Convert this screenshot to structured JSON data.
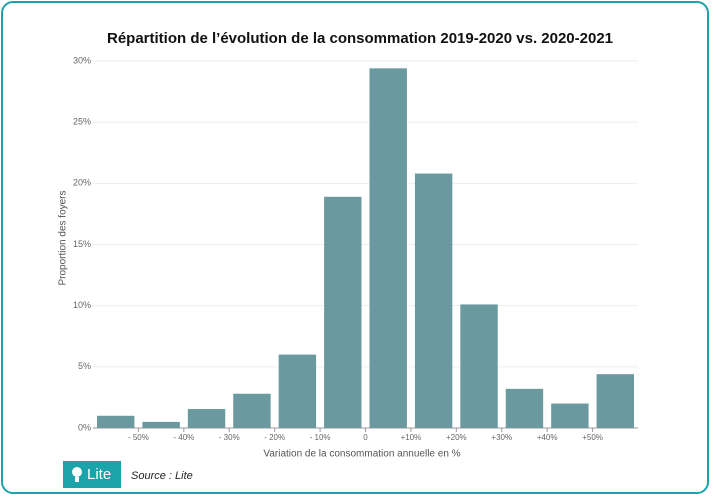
{
  "chart_data": {
    "type": "histogram",
    "title": "Répartition de l’évolution de la consommation 2019-2020 vs. 2020-2021",
    "x_label": "Variation de la consommation annuelle en %",
    "y_label": "Proportion des foyers",
    "bins": [
      -60,
      -50,
      -40,
      -30,
      -20,
      -10,
      0,
      10,
      20,
      30,
      40,
      50,
      60
    ],
    "values": [
      1,
      0.5,
      1.55,
      2.8,
      6,
      18.9,
      29.4,
      20.8,
      10.1,
      3.2,
      2,
      4.4
    ],
    "color": "#6a9aa0",
    "xlim": [
      -60,
      60
    ],
    "xticks": [
      {
        "value": -50,
        "label": "- 50%"
      },
      {
        "value": -40,
        "label": "- 40%"
      },
      {
        "value": -30,
        "label": "- 30%"
      },
      {
        "value": -20,
        "label": "- 20%"
      },
      {
        "value": -10,
        "label": "- 10%"
      },
      0,
      {
        "value": 10,
        "label": "+10%"
      },
      {
        "value": 20,
        "label": "+20%"
      },
      {
        "value": 30,
        "label": "+30%"
      },
      {
        "value": 40,
        "label": "+40%"
      },
      {
        "value": 50,
        "label": "+50%"
      }
    ],
    "ylim": [
      0,
      30
    ],
    "yticks": [
      {
        "value": 0,
        "label": "0%"
      },
      {
        "value": 5,
        "label": "5%"
      },
      {
        "value": 10,
        "label": "10%"
      },
      {
        "value": 15,
        "label": "15%"
      },
      {
        "value": 20,
        "label": "20%"
      },
      {
        "value": 25,
        "label": "25%"
      },
      {
        "value": 30,
        "label": "30%"
      }
    ],
    "grid": true
  },
  "footer": {
    "logo": "Lite",
    "source": "Source : Lite"
  }
}
